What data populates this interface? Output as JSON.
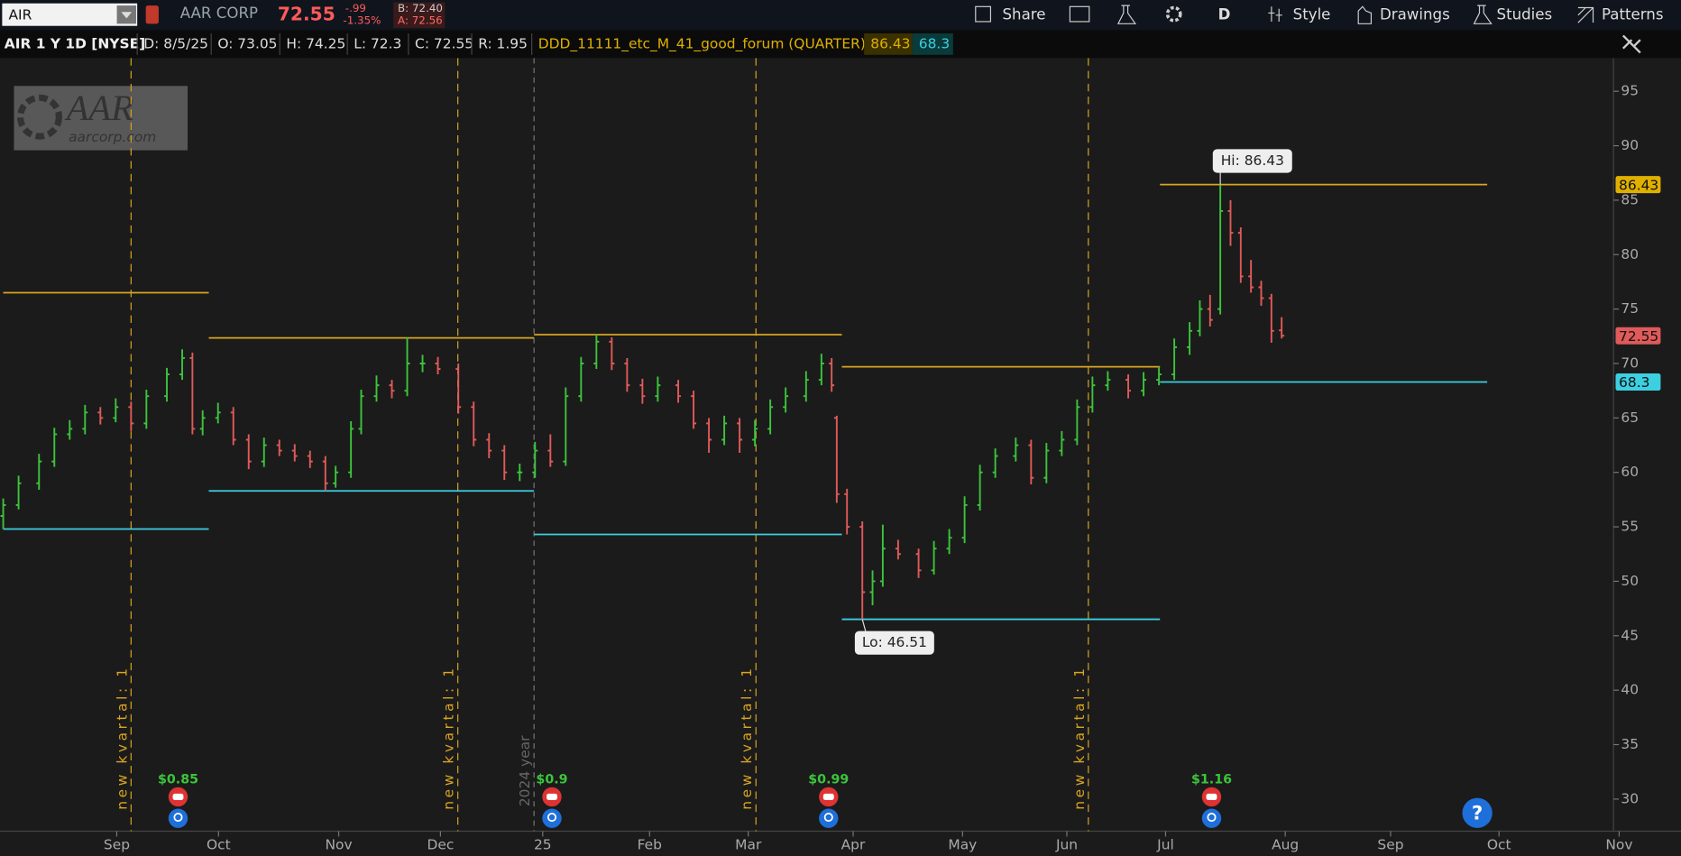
{
  "toolbar": {
    "symbol": "AIR",
    "company": "AAR CORP",
    "last": "72.55",
    "change": "-.99",
    "change_pct": "-1.35%",
    "bid": "B: 72.40",
    "ask": "A: 72.56",
    "buttons": [
      "Share",
      "D",
      "Style",
      "Drawings",
      "Studies",
      "Patterns"
    ]
  },
  "info_bar": {
    "instrument": "AIR 1 Y 1D [NYSE]",
    "fields": [
      "D: 8/5/25",
      "O: 73.05",
      "H: 74.25",
      "L: 72.3",
      "C: 72.55",
      "R: 1.95"
    ],
    "study": "DDD_11111_etc_M_41_good_forum (QUARTER)",
    "study_high": "86.43",
    "study_low": "68.3"
  },
  "logo": {
    "name": "AAR",
    "site": "aarcorp.com"
  },
  "chart_data": {
    "type": "ohlc",
    "up_color": "#3cc43c",
    "down_color": "#e05a5a",
    "xlim": [
      0,
      316
    ],
    "ylim": [
      27.05,
      98.05
    ],
    "xticks": [
      {
        "value": 22.2,
        "label": "Sep"
      },
      {
        "value": 42.1,
        "label": "Oct"
      },
      {
        "value": 65.6,
        "label": "Nov"
      },
      {
        "value": 85.5,
        "label": "Dec"
      },
      {
        "value": 105.5,
        "label": "25"
      },
      {
        "value": 126.4,
        "label": "Feb"
      },
      {
        "value": 145.7,
        "label": "Mar"
      },
      {
        "value": 166.2,
        "label": "Apr"
      },
      {
        "value": 187.6,
        "label": "May"
      },
      {
        "value": 208,
        "label": "Jun"
      },
      {
        "value": 227.3,
        "label": "Jul"
      },
      {
        "value": 250.7,
        "label": "Aug"
      },
      {
        "value": 271.3,
        "label": "Sep"
      },
      {
        "value": 292.5,
        "label": "Oct"
      },
      {
        "value": 316,
        "label": "Nov"
      }
    ],
    "yticks": [
      30,
      35,
      40,
      45,
      50,
      55,
      60,
      65,
      70,
      75,
      80,
      85,
      90,
      95
    ],
    "ohlc": [
      [
        0,
        56,
        57.6,
        54.8,
        57
      ],
      [
        3,
        57,
        59.7,
        56.6,
        59
      ],
      [
        7,
        59,
        61.7,
        58.4,
        61
      ],
      [
        10,
        61,
        64.1,
        60.5,
        63.5
      ],
      [
        13,
        63.5,
        64.8,
        63,
        64
      ],
      [
        16,
        64,
        66.2,
        63.5,
        65.5
      ],
      [
        19,
        65.5,
        66,
        64.4,
        65
      ],
      [
        22,
        65,
        66.8,
        64.6,
        66
      ],
      [
        25,
        66,
        66.5,
        63.8,
        64.5
      ],
      [
        28,
        64.5,
        67.6,
        64,
        67
      ],
      [
        32,
        67,
        69.6,
        66.5,
        69
      ],
      [
        35,
        69,
        71.3,
        68.5,
        70.5
      ],
      [
        37,
        70.5,
        71,
        63.5,
        64
      ],
      [
        39,
        64,
        65.7,
        63.4,
        65
      ],
      [
        42,
        65,
        66.4,
        64.5,
        65.5
      ],
      [
        45,
        65.5,
        66,
        62.5,
        63
      ],
      [
        48,
        63,
        63.5,
        60.3,
        61
      ],
      [
        51,
        61,
        63.2,
        60.5,
        62.5
      ],
      [
        54,
        62.5,
        63,
        61.5,
        62
      ],
      [
        57,
        62,
        62.6,
        61,
        61.5
      ],
      [
        60,
        61.5,
        62,
        60.4,
        61
      ],
      [
        63,
        61,
        61.5,
        58.3,
        59
      ],
      [
        65,
        59,
        60.6,
        58.6,
        60
      ],
      [
        68,
        60,
        64.7,
        59.5,
        64
      ],
      [
        70,
        64,
        67.6,
        63.5,
        67
      ],
      [
        73,
        67,
        68.9,
        66.5,
        68
      ],
      [
        76,
        68,
        68.5,
        66.8,
        67.5
      ],
      [
        79,
        67.5,
        72.4,
        67,
        70
      ],
      [
        82,
        70,
        70.8,
        69.2,
        70
      ],
      [
        85,
        70,
        70.6,
        69,
        69.5
      ],
      [
        89,
        69.5,
        70,
        65.4,
        66
      ],
      [
        92,
        66,
        66.5,
        62.4,
        63
      ],
      [
        95,
        63,
        63.6,
        61.3,
        62
      ],
      [
        98,
        62,
        62.5,
        59.3,
        60
      ],
      [
        101,
        60,
        60.8,
        59.2,
        60
      ],
      [
        104,
        60,
        62.8,
        59.5,
        62
      ],
      [
        107,
        62,
        63.5,
        60.5,
        61
      ],
      [
        110,
        61,
        67.8,
        60.6,
        67
      ],
      [
        113,
        67,
        70.6,
        66.5,
        70
      ],
      [
        116,
        70,
        72.7,
        69.5,
        72
      ],
      [
        119,
        72,
        72.4,
        69.4,
        70
      ],
      [
        122,
        70,
        70.5,
        67.4,
        68
      ],
      [
        125,
        68,
        68.6,
        66.3,
        67
      ],
      [
        128,
        67,
        68.8,
        66.5,
        68
      ],
      [
        132,
        68,
        68.5,
        66.4,
        67
      ],
      [
        135,
        67,
        67.5,
        64,
        64.5
      ],
      [
        138,
        64.5,
        65,
        61.8,
        63
      ],
      [
        141,
        63,
        65.2,
        62.5,
        64.5
      ],
      [
        144,
        64.5,
        65,
        61.8,
        63
      ],
      [
        147,
        63,
        64.8,
        62.4,
        64
      ],
      [
        150,
        64,
        66.7,
        63.5,
        66
      ],
      [
        153,
        66,
        67.8,
        65.5,
        67
      ],
      [
        157,
        67,
        69.3,
        66.5,
        68.5
      ],
      [
        160,
        68.5,
        70.9,
        68,
        70
      ],
      [
        162,
        70,
        70.5,
        67.4,
        68
      ],
      [
        163,
        65,
        65.2,
        57.2,
        58
      ],
      [
        165,
        58,
        58.5,
        54.3,
        55
      ],
      [
        168,
        55,
        55.5,
        46.51,
        49
      ],
      [
        170,
        49,
        51,
        47.8,
        50
      ],
      [
        172,
        50,
        55.2,
        49.5,
        53
      ],
      [
        175,
        53,
        53.8,
        52,
        52.5
      ],
      [
        179,
        52.5,
        53,
        50.3,
        51
      ],
      [
        182,
        51,
        53.7,
        50.6,
        53
      ],
      [
        185,
        53,
        54.8,
        52.5,
        54
      ],
      [
        188,
        54,
        57.8,
        53.5,
        57
      ],
      [
        191,
        57,
        60.7,
        56.5,
        60
      ],
      [
        194,
        60,
        62.2,
        59.5,
        61.5
      ],
      [
        198,
        61.5,
        63.2,
        61,
        62.5
      ],
      [
        201,
        62.5,
        63,
        58.9,
        59.5
      ],
      [
        204,
        59.5,
        62.7,
        59,
        62
      ],
      [
        207,
        62,
        63.8,
        61.5,
        63
      ],
      [
        210,
        63,
        66.7,
        62.5,
        66
      ],
      [
        213,
        66,
        68.8,
        65.5,
        68
      ],
      [
        216,
        68,
        69.3,
        67.5,
        68.5
      ],
      [
        220,
        68.5,
        69,
        66.8,
        67.5
      ],
      [
        223,
        67.5,
        69.2,
        67,
        68.5
      ],
      [
        226,
        68.5,
        69.7,
        68,
        69
      ],
      [
        229,
        69,
        72.3,
        68.5,
        71.5
      ],
      [
        232,
        71.5,
        73.8,
        70.8,
        73
      ],
      [
        234,
        73,
        75.8,
        72.5,
        75
      ],
      [
        236,
        75,
        76.3,
        73.4,
        74
      ],
      [
        238,
        75,
        86.43,
        74.5,
        84
      ],
      [
        240,
        84,
        85,
        80.8,
        82
      ],
      [
        242,
        82,
        82.5,
        77.4,
        78
      ],
      [
        244,
        78,
        79.5,
        76.5,
        77
      ],
      [
        246,
        77,
        77.6,
        75.3,
        76
      ],
      [
        248,
        76,
        76.4,
        71.9,
        73
      ],
      [
        250,
        73.05,
        74.25,
        72.3,
        72.55
      ]
    ],
    "levels": [
      {
        "x": [
          0,
          40.2
        ],
        "high": 76.5,
        "low": 54.8
      },
      {
        "x": [
          40.2,
          103.8
        ],
        "high": 72.35,
        "low": 58.3
      },
      {
        "x": [
          103.8,
          164
        ],
        "high": 72.65,
        "low": 54.3
      },
      {
        "x": [
          164,
          226.2
        ],
        "high": 69.7,
        "low": 46.51
      },
      {
        "x": [
          226.2,
          290.2
        ],
        "high": 86.43,
        "low": 68.3
      }
    ],
    "high_color": "#d9a520",
    "low_color": "#3ccfe0",
    "quarter_marks": {
      "x": [
        25,
        88.9,
        147.2,
        212.2
      ],
      "label": "new kvartal: 1"
    },
    "year_mark": {
      "x": 103.8,
      "label": "2024 year"
    },
    "earnings": [
      {
        "x": 34.2,
        "value": 0.85,
        "label": "$0.85"
      },
      {
        "x": 107.3,
        "value": 0.9,
        "label": "$0.9"
      },
      {
        "x": 161.4,
        "value": 0.99,
        "label": "$0.99"
      },
      {
        "x": 236.3,
        "value": 1.16,
        "label": "$1.16"
      }
    ],
    "annotations": [
      {
        "x": 238,
        "value": 86.43,
        "label": "Hi: 86.43"
      },
      {
        "x": 168,
        "value": 46.51,
        "label": "Lo: 46.51"
      }
    ],
    "badges": [
      {
        "value": 86.43,
        "color": "#e0b000"
      },
      {
        "value": 72.55,
        "color": "#e05a5a"
      },
      {
        "value": 68.3,
        "color": "#3ccfe0"
      }
    ]
  }
}
